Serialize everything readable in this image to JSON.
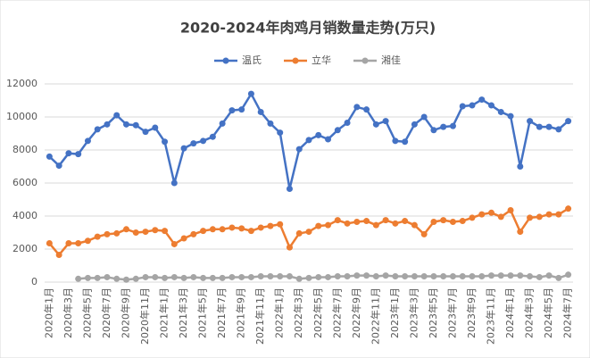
{
  "chart_data": {
    "type": "line",
    "title": "2020-2024年肉鸡月销数量走势(万只)",
    "categories": [
      "2020年1月",
      null,
      "2020年3月",
      null,
      "2020年5月",
      null,
      "2020年7月",
      null,
      "2020年9月",
      null,
      "2020年11月",
      null,
      "2021年1月",
      null,
      "2021年3月",
      null,
      "2021年5月",
      null,
      "2021年7月",
      null,
      "2021年9月",
      null,
      "2021年11月",
      null,
      "2022年1月",
      null,
      "2022年3月",
      null,
      "2022年5月",
      null,
      "2022年7月",
      null,
      "2022年9月",
      null,
      "2022年11月",
      null,
      "2023年1月",
      null,
      "2023年3月",
      null,
      "2023年5月",
      null,
      "2023年7月",
      null,
      "2023年9月",
      null,
      "2023年11月",
      null,
      "2024年1月",
      null,
      "2024年3月",
      null,
      "2024年5月",
      null,
      "2024年7月"
    ],
    "series": [
      {
        "name": "温氏",
        "color": "#4472c4",
        "values": [
          7600,
          7050,
          7800,
          7750,
          8550,
          9250,
          9550,
          10100,
          9550,
          9500,
          9100,
          9350,
          8500,
          6000,
          8100,
          8400,
          8550,
          8800,
          9600,
          10400,
          10450,
          11400,
          10300,
          9600,
          9050,
          5650,
          8050,
          8600,
          8900,
          8650,
          9200,
          9650,
          10600,
          10450,
          9550,
          9750,
          8550,
          8500,
          9550,
          10000,
          9200,
          9400,
          9450,
          10650,
          10700,
          11050,
          10700,
          10300,
          10050,
          7000,
          9750,
          9400,
          9400,
          9250,
          9750
        ]
      },
      {
        "name": "立华",
        "color": "#ed7d31",
        "values": [
          2350,
          1650,
          2350,
          2350,
          2500,
          2750,
          2900,
          2950,
          3200,
          3000,
          3050,
          3150,
          3100,
          2300,
          2650,
          2900,
          3100,
          3200,
          3200,
          3300,
          3250,
          3100,
          3300,
          3400,
          3500,
          2100,
          2950,
          3050,
          3400,
          3450,
          3750,
          3550,
          3650,
          3700,
          3450,
          3750,
          3550,
          3700,
          3450,
          2900,
          3650,
          3750,
          3650,
          3700,
          3900,
          4100,
          4200,
          3950,
          4350,
          3050,
          3900,
          3950,
          4100,
          4100,
          4450
        ]
      },
      {
        "name": "湘佳",
        "color": "#a5a5a5",
        "values": [
          null,
          null,
          null,
          200,
          250,
          250,
          300,
          200,
          150,
          200,
          300,
          300,
          250,
          300,
          250,
          300,
          250,
          250,
          250,
          300,
          300,
          300,
          350,
          350,
          350,
          350,
          200,
          250,
          300,
          300,
          350,
          350,
          400,
          400,
          350,
          400,
          350,
          350,
          350,
          350,
          350,
          350,
          350,
          350,
          350,
          350,
          400,
          400,
          400,
          400,
          350,
          300,
          400,
          250,
          450
        ]
      }
    ],
    "ylim": [
      0,
      12000
    ],
    "yticks": [
      0,
      2000,
      4000,
      6000,
      8000,
      10000,
      12000
    ],
    "grid": true,
    "legend": "top"
  }
}
